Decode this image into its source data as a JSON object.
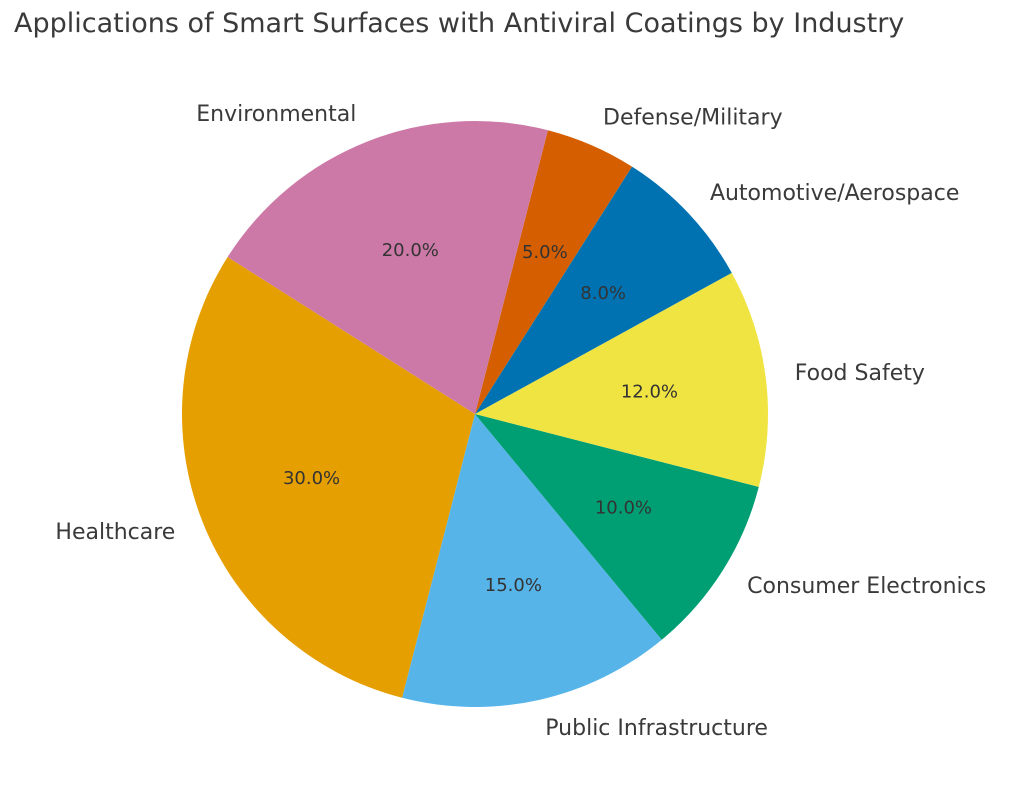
{
  "chart_data": {
    "type": "pie",
    "title": "Applications of Smart Surfaces with Antiviral Coatings by Industry",
    "start_angle_deg": 147.6,
    "direction": "counterclockwise",
    "autopct_format": "%.1f%%",
    "slices": [
      {
        "label": "Healthcare",
        "value": 30.0,
        "pct_text": "30.0%",
        "color": "#E69F00"
      },
      {
        "label": "Public Infrastructure",
        "value": 15.0,
        "pct_text": "15.0%",
        "color": "#56B4E9"
      },
      {
        "label": "Consumer Electronics",
        "value": 10.0,
        "pct_text": "10.0%",
        "color": "#009E73"
      },
      {
        "label": "Food Safety",
        "value": 12.0,
        "pct_text": "12.0%",
        "color": "#F0E442"
      },
      {
        "label": "Automotive/Aerospace",
        "value": 8.0,
        "pct_text": "8.0%",
        "color": "#0072B2"
      },
      {
        "label": "Defense/Military",
        "value": 5.0,
        "pct_text": "5.0%",
        "color": "#D55E00"
      },
      {
        "label": "Environmental",
        "value": 20.0,
        "pct_text": "20.0%",
        "color": "#CC79A7"
      }
    ]
  }
}
